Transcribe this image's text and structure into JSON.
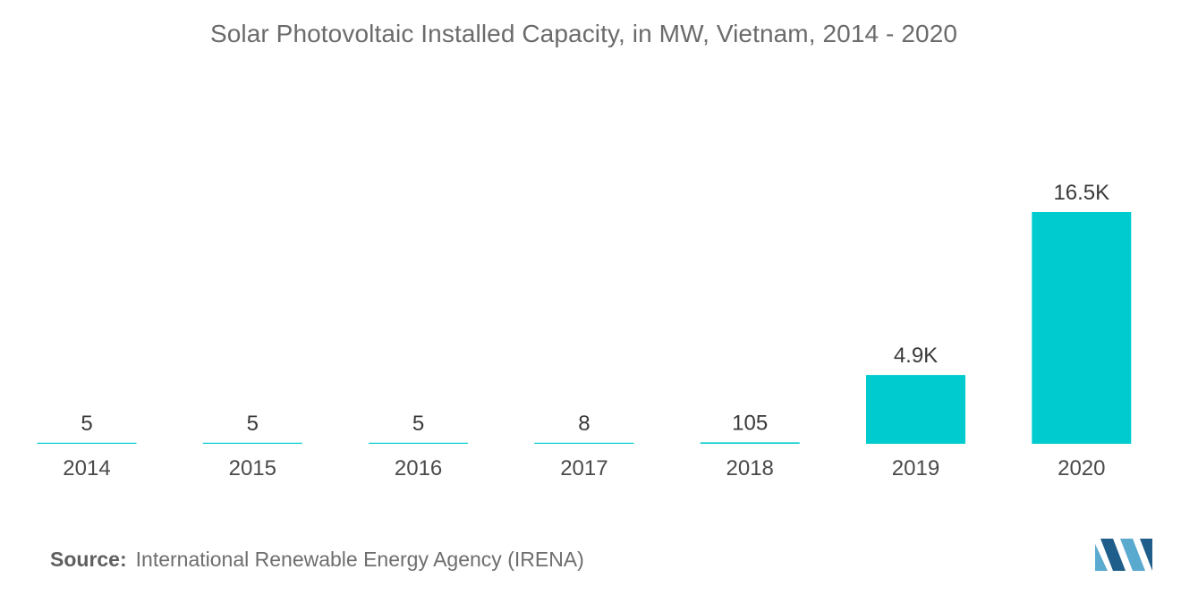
{
  "chart_data": {
    "type": "bar",
    "title": "Solar Photovoltaic Installed Capacity, in MW, Vietnam, 2014 - 2020",
    "xlabel": "",
    "ylabel": "",
    "categories": [
      "2014",
      "2015",
      "2016",
      "2017",
      "2018",
      "2019",
      "2020"
    ],
    "values": [
      5,
      5,
      5,
      8,
      105,
      4900,
      16500
    ],
    "value_labels": [
      "5",
      "5",
      "5",
      "8",
      "105",
      "4.9K",
      "16.5K"
    ],
    "ylim": [
      0,
      16500
    ],
    "grid": false,
    "legend": "none",
    "bar_color": "#00cccf"
  },
  "source": {
    "label": "Source:",
    "text": "International Renewable Energy Agency (IRENA)"
  },
  "logo": {
    "icon": "mordor-intelligence-logo-icon",
    "colors": [
      "#5aa9cf",
      "#1f5d8a"
    ]
  }
}
